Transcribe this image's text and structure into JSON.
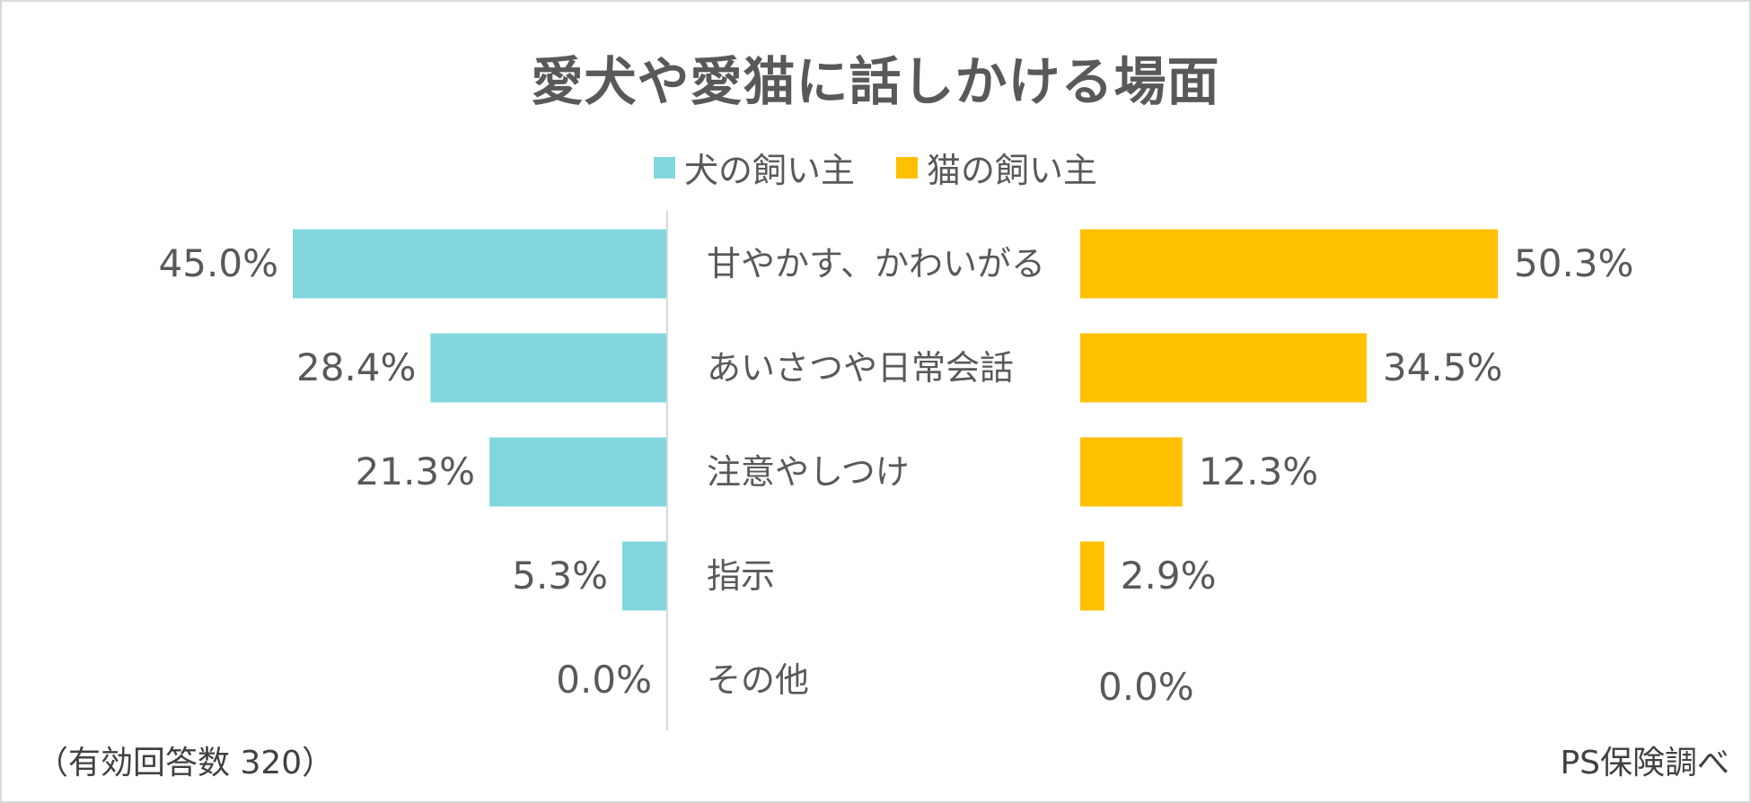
{
  "chart_data": {
    "type": "bar",
    "title": "愛犬や愛猫に話しかける場面",
    "categories": [
      "甘やかす、かわいがる",
      "あいさつや日常会話",
      "注意やしつけ",
      "指示",
      "その他"
    ],
    "series": [
      {
        "name": "犬の飼い主",
        "values": [
          45.0,
          28.4,
          21.3,
          5.3,
          0.0
        ],
        "color": "#82d7dc",
        "labels": [
          "45.0%",
          "28.4%",
          "21.3%",
          "5.3%",
          "0.0%"
        ]
      },
      {
        "name": "猫の飼い主",
        "values": [
          50.3,
          34.5,
          12.3,
          2.9,
          0.0
        ],
        "color": "#ffc000",
        "labels": [
          "50.3%",
          "34.5%",
          "12.3%",
          "2.9%",
          "0.0%"
        ]
      }
    ],
    "xlim": [
      0,
      50.3
    ],
    "legend": "top-center",
    "grid": false
  },
  "footer": {
    "note": "（有効回答数 320）",
    "source": "PS保険調べ"
  }
}
